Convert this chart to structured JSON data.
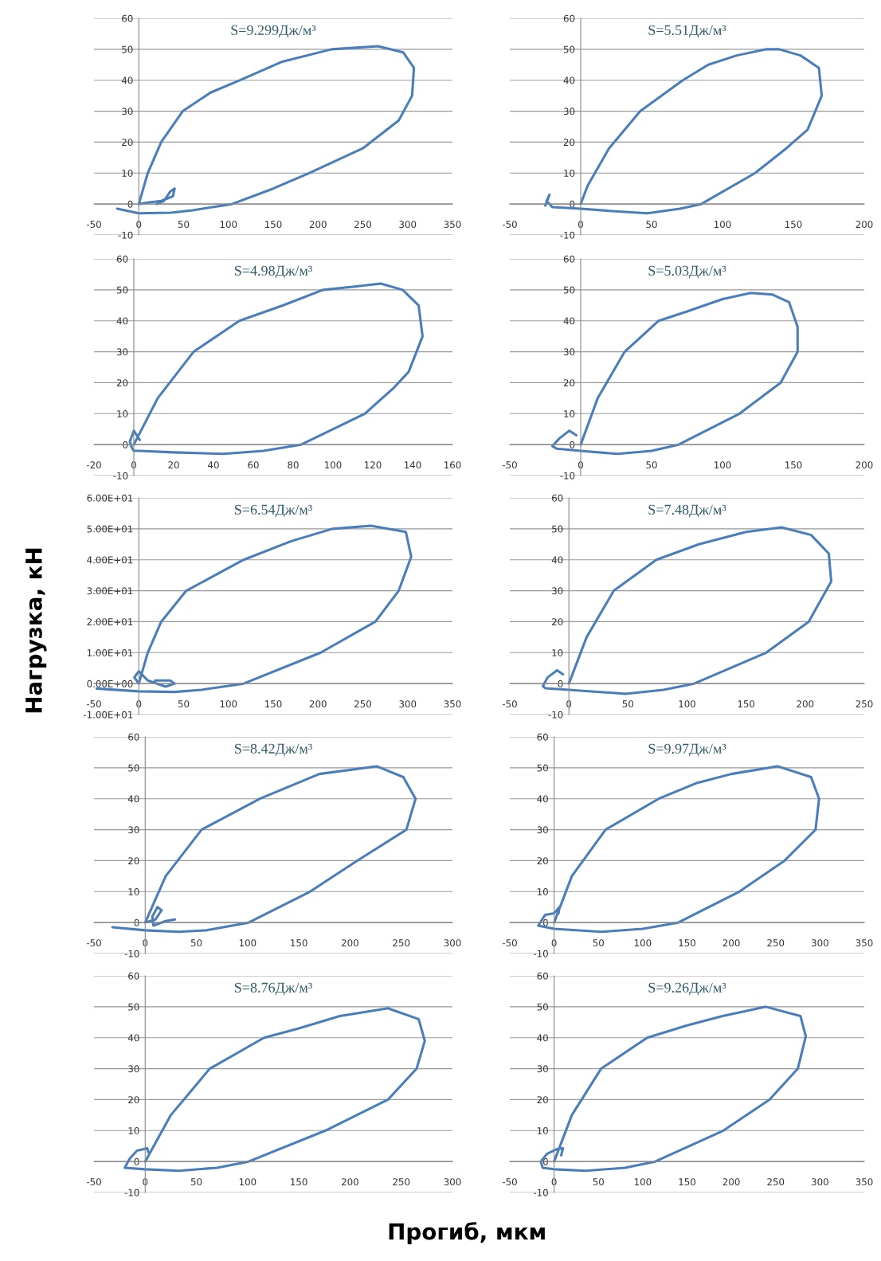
{
  "chart_data": [
    {
      "type": "line",
      "title": "S=9.299Дж/м³",
      "xlim": [
        -50,
        350
      ],
      "ylim": [
        -10,
        60
      ],
      "xticks": [
        -50,
        0,
        50,
        100,
        150,
        200,
        250,
        300,
        350
      ],
      "yticks": [
        -10,
        0,
        10,
        20,
        30,
        40,
        50,
        60
      ],
      "grid": "y",
      "series": [
        {
          "color": "#4a7ebb",
          "x": [
            20,
            28,
            35,
            40,
            38,
            25,
            10,
            0,
            10,
            25,
            49,
            80,
            113,
            160,
            215,
            267,
            295,
            307,
            305,
            290,
            250,
            190,
            150,
            104,
            60,
            36,
            0,
            -24
          ],
          "values": [
            0,
            1,
            4,
            5,
            2.5,
            1,
            0.5,
            0,
            10,
            20,
            30,
            36,
            40,
            46,
            50,
            51,
            49,
            44,
            35,
            27,
            18,
            10,
            5,
            0,
            -2,
            -2.8,
            -3,
            -1.5
          ]
        }
      ]
    },
    {
      "type": "line",
      "title": "S=5.51Дж/м³",
      "xlim": [
        -50,
        200
      ],
      "ylim": [
        -10,
        60
      ],
      "xticks": [
        -50,
        0,
        50,
        100,
        150,
        200
      ],
      "yticks": [
        -10,
        0,
        10,
        20,
        30,
        40,
        50,
        60
      ],
      "grid": "y",
      "series": [
        {
          "color": "#4a7ebb",
          "x": [
            -25,
            -22,
            -24,
            -20,
            0,
            20,
            47,
            70,
            85,
            123,
            145,
            160,
            170,
            168,
            155,
            140,
            131,
            110,
            90,
            72,
            42,
            20,
            5,
            0
          ],
          "values": [
            -0.5,
            3,
            1,
            -1,
            -1.5,
            -2.2,
            -3,
            -1.5,
            0,
            10,
            18,
            24,
            35,
            44,
            48,
            50,
            50,
            48,
            45,
            40,
            30,
            18,
            6,
            0
          ]
        }
      ]
    },
    {
      "type": "line",
      "title": "S=4.98Дж/м³",
      "xlim": [
        -20,
        160
      ],
      "ylim": [
        -10,
        60
      ],
      "xticks": [
        -20,
        0,
        20,
        40,
        60,
        80,
        100,
        120,
        140,
        160
      ],
      "yticks": [
        -10,
        0,
        10,
        20,
        30,
        40,
        50,
        60
      ],
      "grid": "y",
      "series": [
        {
          "color": "#4a7ebb",
          "x": [
            3,
            0,
            -2,
            -1,
            0,
            3,
            20,
            45,
            65,
            84,
            116,
            130,
            138,
            145,
            143,
            135,
            124,
            110,
            95,
            75,
            53,
            30,
            12,
            0
          ],
          "values": [
            1.5,
            4.5,
            1,
            -1,
            -2,
            -2,
            -2.5,
            -3,
            -2,
            0,
            10,
            18,
            23.5,
            35,
            45,
            50,
            52,
            51,
            50,
            45,
            40,
            30,
            15,
            0
          ]
        }
      ]
    },
    {
      "type": "line",
      "title": "S=5.03Дж/м³",
      "xlim": [
        -50,
        200
      ],
      "ylim": [
        -10,
        60
      ],
      "xticks": [
        -50,
        0,
        50,
        100,
        150,
        200
      ],
      "yticks": [
        -10,
        0,
        10,
        20,
        30,
        40,
        50,
        60
      ],
      "grid": "y",
      "series": [
        {
          "color": "#4a7ebb",
          "x": [
            -3,
            -8,
            -15,
            -20,
            -17,
            0,
            26,
            50,
            69,
            112,
            141,
            153,
            153,
            147,
            135,
            120,
            100,
            75,
            55,
            31,
            12,
            0
          ],
          "values": [
            3,
            4.5,
            2,
            -0.5,
            -1.3,
            -2,
            -3,
            -2,
            0,
            10,
            20,
            30,
            38,
            46,
            48.5,
            49,
            47,
            43,
            40,
            30,
            15,
            0
          ]
        }
      ]
    },
    {
      "type": "line",
      "title": "S=6.54Дж/м³",
      "ylabel": "Нагрузка, кН",
      "xlim": [
        -50,
        350
      ],
      "ylim": [
        -10,
        60
      ],
      "xticks": [
        -50,
        0,
        50,
        100,
        150,
        200,
        250,
        300,
        350
      ],
      "yticks": [
        {
          "value": -10,
          "label": "-1.00E+01"
        },
        {
          "value": 0,
          "label": "0.00E+00"
        },
        {
          "value": 10,
          "label": "1.00E+01"
        },
        {
          "value": 20,
          "label": "2.00E+01"
        },
        {
          "value": 30,
          "label": "3.00E+01"
        },
        {
          "value": 40,
          "label": "4.00E+01"
        },
        {
          "value": 50,
          "label": "5.00E+01"
        },
        {
          "value": 60,
          "label": "6.00E+01"
        }
      ],
      "grid": "y",
      "series": [
        {
          "color": "#4a7ebb",
          "x": [
            18,
            35,
            40,
            30,
            10,
            0,
            -5,
            0,
            10,
            25,
            53,
            117,
            170,
            216,
            259,
            298,
            304,
            290,
            264,
            203,
            117,
            70,
            40,
            0,
            -47
          ],
          "values": [
            1,
            1,
            0,
            -1,
            1,
            4,
            2,
            0,
            10,
            20,
            30,
            40,
            46,
            50,
            51,
            49,
            41,
            30,
            20,
            10,
            0,
            -2,
            -2.7,
            -2.5,
            -1.6
          ]
        }
      ]
    },
    {
      "type": "line",
      "title": "S=7.48Дж/м³",
      "xlim": [
        -50,
        250
      ],
      "ylim": [
        -10,
        60
      ],
      "xticks": [
        -50,
        0,
        50,
        100,
        150,
        200,
        250
      ],
      "yticks": [
        -10,
        0,
        10,
        20,
        30,
        40,
        50,
        60
      ],
      "grid": "y",
      "series": [
        {
          "color": "#4a7ebb",
          "x": [
            -5,
            -10,
            -18,
            -22,
            -20,
            0,
            48,
            80,
            106,
            167,
            203,
            222,
            220,
            205,
            180,
            150,
            110,
            74,
            38,
            15,
            0
          ],
          "values": [
            3,
            4.3,
            2,
            -0.8,
            -1.5,
            -2,
            -3.3,
            -2,
            0,
            10,
            20,
            33,
            42,
            48,
            50.5,
            49,
            45,
            40,
            30,
            15,
            0
          ]
        }
      ]
    },
    {
      "type": "line",
      "title": "S=8.42Дж/м³",
      "xlim": [
        -50,
        300
      ],
      "ylim": [
        -10,
        60
      ],
      "xticks": [
        -50,
        0,
        50,
        100,
        150,
        200,
        250,
        300
      ],
      "yticks": [
        -10,
        0,
        10,
        20,
        30,
        40,
        50,
        60
      ],
      "grid": "y",
      "series": [
        {
          "color": "#4a7ebb",
          "x": [
            29,
            20,
            8,
            7,
            12,
            16,
            10,
            0,
            20,
            55,
            112,
            170,
            226,
            252,
            264,
            255,
            207,
            161,
            101,
            60,
            33,
            0,
            -32
          ],
          "values": [
            1,
            0.5,
            -1,
            2,
            5,
            4,
            1,
            0,
            15,
            30,
            40,
            48,
            50.5,
            47,
            40,
            30,
            20,
            10,
            0,
            -2.5,
            -3,
            -2.5,
            -1.5
          ]
        }
      ]
    },
    {
      "type": "line",
      "title": "S=9.97Дж/м³",
      "xlim": [
        -50,
        350
      ],
      "ylim": [
        -10,
        60
      ],
      "xticks": [
        -50,
        0,
        50,
        100,
        150,
        200,
        250,
        300,
        350
      ],
      "yticks": [
        -10,
        0,
        10,
        20,
        30,
        40,
        50,
        60
      ],
      "grid": "y",
      "series": [
        {
          "color": "#4a7ebb",
          "x": [
            5,
            6,
            0,
            -10,
            -18,
            0,
            53,
            100,
            140,
            209,
            260,
            295,
            299,
            290,
            252,
            200,
            160,
            118,
            58,
            20,
            0
          ],
          "values": [
            3,
            5,
            3,
            2.5,
            -1,
            -2,
            -3,
            -2,
            0,
            10,
            20,
            30,
            40,
            47,
            50.5,
            48,
            45,
            40,
            30,
            15,
            0
          ]
        }
      ]
    },
    {
      "type": "line",
      "title": "S=8.76Дж/м³",
      "xlim": [
        -50,
        300
      ],
      "ylim": [
        -10,
        60
      ],
      "xticks": [
        -50,
        0,
        50,
        100,
        150,
        200,
        250,
        300
      ],
      "yticks": [
        -10,
        0,
        10,
        20,
        30,
        40,
        50,
        60
      ],
      "grid": "y",
      "series": [
        {
          "color": "#4a7ebb",
          "x": [
            3,
            2,
            -8,
            -15,
            -20,
            0,
            33,
            70,
            101,
            176,
            237,
            265,
            273,
            267,
            237,
            190,
            150,
            116,
            63,
            25,
            0
          ],
          "values": [
            3,
            4.3,
            3.5,
            1,
            -2,
            -2.5,
            -3,
            -2,
            0,
            10,
            20,
            30,
            39,
            46,
            49.5,
            47,
            43,
            40,
            30,
            15,
            0
          ]
        }
      ]
    },
    {
      "type": "line",
      "title": "S=9.26Дж/м³",
      "xlabel": "Прогиб, мкм",
      "xlim": [
        -50,
        350
      ],
      "ylim": [
        -10,
        60
      ],
      "xticks": [
        -50,
        0,
        50,
        100,
        150,
        200,
        250,
        300,
        350
      ],
      "yticks": [
        -10,
        0,
        10,
        20,
        30,
        40,
        50,
        60
      ],
      "grid": "y",
      "series": [
        {
          "color": "#4a7ebb",
          "x": [
            8,
            10,
            3,
            -8,
            -15,
            -13,
            0,
            36,
            80,
            114,
            191,
            243,
            275,
            284,
            278,
            239,
            190,
            150,
            105,
            53,
            20,
            0
          ],
          "values": [
            2,
            4.3,
            4,
            2.5,
            0,
            -2,
            -2.5,
            -3,
            -2,
            0,
            10,
            20,
            30,
            40.5,
            47,
            50,
            47,
            44,
            40,
            30,
            15,
            0
          ]
        }
      ]
    }
  ]
}
